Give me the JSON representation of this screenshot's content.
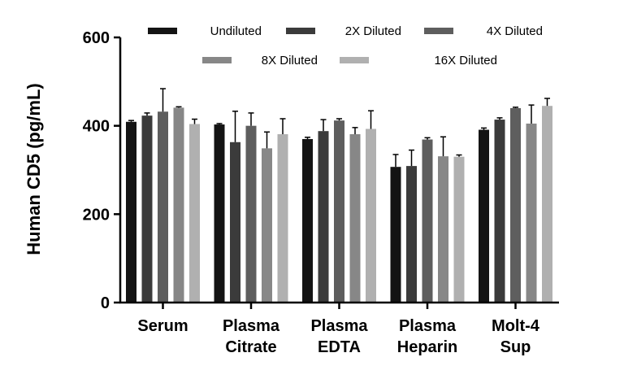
{
  "chart_data": {
    "type": "bar",
    "ylabel": "Human CD5 (pg/mL)",
    "xlabel": "",
    "ylim": [
      0,
      600
    ],
    "yticks": [
      0,
      200,
      400,
      600
    ],
    "legend_position": "top",
    "categories": [
      [
        "Serum"
      ],
      [
        "Plasma",
        "Citrate"
      ],
      [
        "Plasma",
        "EDTA"
      ],
      [
        "Plasma",
        "Heparin"
      ],
      [
        "Molt-4",
        "Sup"
      ]
    ],
    "series": [
      {
        "name": "Undiluted",
        "color": "#141414",
        "values": [
          409,
          403,
          370,
          307,
          391
        ],
        "errors": [
          3,
          2,
          4,
          28,
          4
        ]
      },
      {
        "name": "2X Diluted",
        "color": "#3b3b3b",
        "values": [
          423,
          363,
          388,
          309,
          414
        ],
        "errors": [
          6,
          70,
          26,
          36,
          4
        ]
      },
      {
        "name": "4X Diluted",
        "color": "#5e5e5e",
        "values": [
          432,
          400,
          412,
          369,
          440
        ],
        "errors": [
          52,
          29,
          4,
          4,
          2
        ]
      },
      {
        "name": "8X Diluted",
        "color": "#878787",
        "values": [
          441,
          349,
          381,
          331,
          405
        ],
        "errors": [
          2,
          37,
          15,
          44,
          42
        ]
      },
      {
        "name": "16X Diluted",
        "color": "#b0b0b0",
        "values": [
          404,
          381,
          393,
          330,
          445
        ],
        "errors": [
          11,
          35,
          41,
          4,
          17
        ]
      }
    ]
  }
}
